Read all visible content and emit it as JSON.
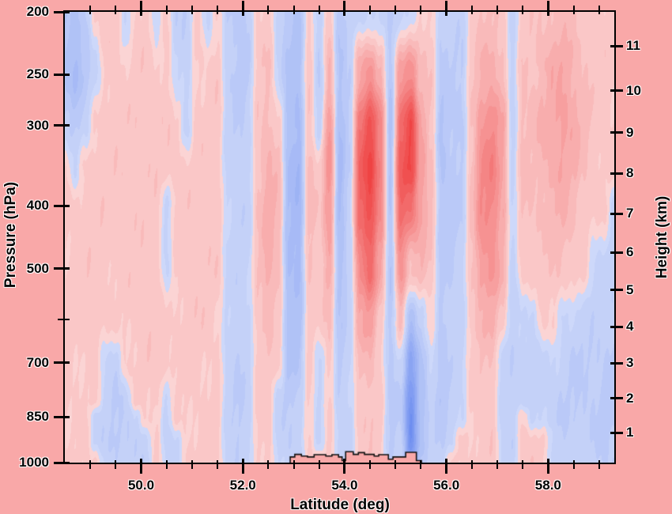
{
  "figure": {
    "background_color": "#f9a8a8",
    "frame_color": "#000000",
    "plot_type_note": "latitude-pressure cross-section of filled contour anomalies; red = positive, blue = negative; no title or colorbar shown"
  },
  "axes": {
    "x": {
      "label": "Latitude (deg)",
      "range": [
        48.5,
        59.3
      ],
      "major_ticks": [
        50,
        52,
        54,
        56,
        58
      ],
      "major_tick_labels": [
        "50.0",
        "52.0",
        "54.0",
        "56.0",
        "58.0"
      ],
      "minor_tick_step": 0.5
    },
    "y_left": {
      "label": "Pressure (hPa)",
      "scale": "log",
      "range": [
        200,
        1000
      ],
      "labeled_ticks": [
        200,
        250,
        300,
        400,
        500,
        700,
        850,
        1000
      ],
      "tick_labels": [
        "200",
        "250",
        "300",
        "400",
        "500",
        "700",
        "850",
        "1000"
      ],
      "unlabeled_ticks": [
        600
      ]
    },
    "y_right": {
      "label": "Height (km)",
      "ticks": [
        1,
        2,
        3,
        4,
        5,
        6,
        7,
        8,
        9,
        10,
        11
      ],
      "tick_labels": [
        "1",
        "2",
        "3",
        "4",
        "5",
        "6",
        "7",
        "8",
        "9",
        "10",
        "11"
      ],
      "tick_pressures_hpa": [
        899,
        795,
        701,
        616,
        540,
        472,
        411,
        356,
        308,
        265,
        226
      ]
    }
  },
  "chart_data": {
    "type": "heatmap",
    "x_name": "latitude_deg",
    "y_name": "pressure_hpa",
    "description": "Filled-contour anomaly field (arbitrary units, approx -3..+3). values[i][j] is the anomaly at lats[i] and levels_hpa[j], top (200 hPa) to bottom (1000 hPa). Dominant structure: fine vertical red/blue stripes; strongest reds near lat 54.3-54.7 and 55.1-55.3 at 250-450 hPa; deep blue band near lat 55.3-55.4 descending to the surface; moderate red band near 56.7-57.1 aloft; pale blue lower-troposphere patches at far left and far right.",
    "lats": [
      48.5,
      48.7,
      48.9,
      49.1,
      49.3,
      49.5,
      49.7,
      49.9,
      50.1,
      50.3,
      50.5,
      50.7,
      50.9,
      51.1,
      51.3,
      51.5,
      51.7,
      51.9,
      52.1,
      52.3,
      52.5,
      52.7,
      52.9,
      53.1,
      53.3,
      53.5,
      53.7,
      53.9,
      54.1,
      54.3,
      54.5,
      54.7,
      54.9,
      55.1,
      55.3,
      55.5,
      55.7,
      55.9,
      56.1,
      56.3,
      56.5,
      56.7,
      56.9,
      57.1,
      57.3,
      57.5,
      57.7,
      57.9,
      58.1,
      58.3,
      58.5,
      58.7,
      58.9,
      59.1,
      59.3
    ],
    "levels_hpa": [
      200,
      250,
      300,
      350,
      400,
      500,
      600,
      700,
      800,
      850,
      925,
      1000
    ],
    "values": [
      [
        -0.8,
        -0.8,
        -0.4,
        0.3,
        0.3,
        0.3,
        0.3,
        0.3,
        0.3,
        0.3,
        0.3,
        0.3
      ],
      [
        -0.9,
        -1.0,
        -0.6,
        -0.3,
        0.3,
        0.4,
        0.3,
        0.3,
        0.3,
        0.3,
        0.3,
        0.3
      ],
      [
        -0.5,
        -0.7,
        -0.4,
        0.3,
        0.4,
        0.4,
        0.4,
        0.3,
        0.3,
        0.3,
        0.3,
        0.3
      ],
      [
        0.3,
        -0.4,
        0.3,
        0.4,
        0.4,
        0.4,
        0.4,
        0.3,
        0.3,
        -0.3,
        -0.3,
        0.3
      ],
      [
        0.4,
        0.3,
        0.4,
        0.4,
        0.4,
        0.4,
        0.3,
        -0.3,
        -0.4,
        -0.4,
        -0.4,
        -0.3
      ],
      [
        0.4,
        0.4,
        0.4,
        0.4,
        0.4,
        0.3,
        0.3,
        -0.4,
        -0.5,
        -0.5,
        -0.6,
        -0.5
      ],
      [
        -0.3,
        0.3,
        0.4,
        0.4,
        0.4,
        0.4,
        0.3,
        0.3,
        -0.4,
        -0.5,
        -0.5,
        -0.4
      ],
      [
        0.3,
        0.4,
        0.4,
        0.4,
        0.4,
        0.4,
        0.4,
        0.3,
        0.3,
        -0.3,
        -0.4,
        -0.4
      ],
      [
        0.4,
        0.4,
        0.4,
        0.4,
        0.4,
        0.4,
        0.4,
        0.4,
        0.3,
        0.3,
        -0.3,
        -0.4
      ],
      [
        -0.3,
        0.3,
        0.4,
        0.4,
        0.4,
        0.4,
        0.4,
        0.4,
        0.4,
        0.3,
        0.3,
        0.3
      ],
      [
        0.3,
        0.4,
        0.4,
        0.4,
        -0.3,
        -0.3,
        0.3,
        0.4,
        -0.3,
        -0.4,
        -0.4,
        -0.3
      ],
      [
        -0.4,
        -0.3,
        0.3,
        0.4,
        0.4,
        0.3,
        0.3,
        0.3,
        0.3,
        0.3,
        -0.3,
        -0.3
      ],
      [
        -0.5,
        -0.4,
        -0.3,
        0.3,
        0.4,
        0.4,
        0.4,
        0.3,
        0.3,
        0.3,
        0.3,
        0.3
      ],
      [
        0.3,
        0.3,
        0.4,
        0.4,
        0.4,
        0.4,
        0.4,
        0.4,
        0.3,
        0.3,
        0.3,
        0.3
      ],
      [
        -0.3,
        0.3,
        0.3,
        0.4,
        0.4,
        0.4,
        0.4,
        0.3,
        0.3,
        0.3,
        0.3,
        0.3
      ],
      [
        0.3,
        0.4,
        0.4,
        0.4,
        0.4,
        0.4,
        0.3,
        0.3,
        0.3,
        0.3,
        0.3,
        0.3
      ],
      [
        -0.5,
        -0.4,
        -0.4,
        -0.3,
        -0.3,
        -0.3,
        -0.3,
        -0.4,
        -0.4,
        -0.4,
        -0.3,
        -0.3
      ],
      [
        -0.6,
        -0.6,
        -0.5,
        -0.5,
        -0.4,
        -0.4,
        -0.4,
        -0.5,
        -0.5,
        -0.5,
        -0.5,
        -0.5
      ],
      [
        -0.5,
        -0.5,
        -0.4,
        -0.4,
        -0.4,
        -0.3,
        -0.3,
        -0.4,
        -0.4,
        -0.4,
        -0.4,
        -0.4
      ],
      [
        0.3,
        0.4,
        0.4,
        0.5,
        0.5,
        0.5,
        0.4,
        0.4,
        0.3,
        0.3,
        0.3,
        0.3
      ],
      [
        0.4,
        0.5,
        0.6,
        0.8,
        0.9,
        0.9,
        0.6,
        0.4,
        0.4,
        0.4,
        0.4,
        0.4
      ],
      [
        -0.4,
        -0.3,
        0.4,
        0.6,
        0.7,
        0.6,
        0.4,
        0.3,
        -0.3,
        -0.4,
        -0.4,
        -0.3
      ],
      [
        -0.7,
        -0.8,
        -0.9,
        -1.0,
        -1.0,
        -1.0,
        -0.9,
        -0.8,
        -0.6,
        -0.5,
        -0.5,
        -0.4
      ],
      [
        -0.8,
        -0.9,
        -1.1,
        -1.2,
        -1.2,
        -1.1,
        -0.9,
        -0.7,
        -0.5,
        -0.5,
        -0.4,
        -0.4
      ],
      [
        0.3,
        0.4,
        0.5,
        0.6,
        0.6,
        0.5,
        0.4,
        0.3,
        0.3,
        0.3,
        0.3,
        0.3
      ],
      [
        -0.5,
        -0.5,
        -0.4,
        0.3,
        0.4,
        0.4,
        0.3,
        -0.3,
        -0.3,
        -0.3,
        -0.3,
        0.3
      ],
      [
        0.4,
        0.8,
        1.2,
        1.4,
        1.3,
        0.9,
        0.5,
        0.4,
        0.3,
        0.3,
        0.3,
        0.3
      ],
      [
        -0.6,
        -0.8,
        -1.0,
        -1.1,
        -1.0,
        -0.9,
        -0.7,
        -0.6,
        -0.5,
        -0.4,
        -0.4,
        -0.4
      ],
      [
        -0.4,
        -0.5,
        -0.5,
        -0.4,
        -0.4,
        -0.4,
        -0.4,
        -0.3,
        -0.3,
        -0.3,
        -0.3,
        -0.3
      ],
      [
        -0.4,
        1.0,
        2.0,
        2.3,
        2.2,
        1.6,
        0.9,
        0.6,
        0.4,
        0.4,
        0.4,
        0.4
      ],
      [
        -0.3,
        1.4,
        2.6,
        2.8,
        2.7,
        2.1,
        1.2,
        0.7,
        0.5,
        0.5,
        0.4,
        0.4
      ],
      [
        -0.3,
        0.8,
        1.6,
        1.8,
        1.6,
        1.0,
        0.4,
        0.3,
        0.3,
        0.3,
        0.3,
        0.3
      ],
      [
        -0.5,
        -0.7,
        -0.9,
        -0.8,
        -0.8,
        -0.7,
        -0.6,
        -0.6,
        -0.6,
        -0.6,
        -0.5,
        -0.4
      ],
      [
        -0.4,
        1.2,
        2.2,
        2.4,
        2.2,
        1.4,
        0.6,
        -0.3,
        -0.5,
        -0.5,
        -0.4,
        -0.4
      ],
      [
        -0.3,
        1.6,
        2.7,
        2.8,
        2.0,
        0.5,
        -1.0,
        -1.8,
        -2.3,
        -2.5,
        -2.5,
        -2.0
      ],
      [
        0.3,
        0.6,
        1.0,
        1.2,
        1.1,
        0.7,
        -0.4,
        -0.8,
        -1.0,
        -1.0,
        -0.9,
        -0.7
      ],
      [
        0.3,
        0.4,
        0.5,
        0.6,
        0.6,
        0.4,
        0.3,
        -0.3,
        -0.4,
        -0.4,
        -0.4,
        -0.3
      ],
      [
        -0.5,
        -0.6,
        -0.8,
        -0.8,
        -0.7,
        -0.6,
        -0.6,
        -0.7,
        -0.7,
        -0.6,
        -0.5,
        -0.4
      ],
      [
        -0.4,
        -0.5,
        -0.6,
        -0.6,
        -0.6,
        -0.5,
        -0.4,
        -0.4,
        -0.4,
        -0.4,
        -0.3,
        0.3
      ],
      [
        -0.4,
        -0.5,
        -0.6,
        -0.5,
        -0.5,
        -0.4,
        -0.3,
        -0.3,
        -0.3,
        -0.3,
        0.3,
        0.3
      ],
      [
        0.3,
        0.4,
        0.5,
        0.6,
        0.6,
        0.5,
        0.4,
        0.3,
        0.3,
        0.3,
        0.3,
        0.3
      ],
      [
        0.5,
        0.8,
        1.3,
        1.5,
        1.5,
        1.2,
        0.7,
        0.5,
        0.4,
        0.4,
        0.4,
        0.4
      ],
      [
        0.5,
        0.9,
        1.5,
        1.7,
        1.6,
        1.3,
        0.8,
        0.5,
        0.4,
        0.4,
        0.4,
        0.4
      ],
      [
        0.4,
        0.6,
        1.0,
        1.1,
        1.0,
        0.8,
        0.4,
        -0.3,
        -0.4,
        -0.4,
        -0.3,
        -0.3
      ],
      [
        -0.4,
        -0.4,
        -0.4,
        -0.3,
        -0.3,
        -0.4,
        -0.4,
        -0.5,
        -0.5,
        -0.4,
        -0.4,
        -0.3
      ],
      [
        0.4,
        0.5,
        0.6,
        0.6,
        0.5,
        0.4,
        -0.3,
        -0.4,
        -0.3,
        0.3,
        0.4,
        0.4
      ],
      [
        0.4,
        0.5,
        0.6,
        0.5,
        0.5,
        0.4,
        -0.3,
        -0.4,
        -0.4,
        -0.3,
        0.3,
        0.4
      ],
      [
        0.5,
        0.7,
        0.8,
        0.7,
        0.6,
        0.4,
        0.3,
        -0.3,
        -0.4,
        -0.3,
        0.3,
        0.3
      ],
      [
        0.6,
        0.9,
        1.0,
        0.9,
        0.7,
        0.5,
        0.3,
        -0.3,
        -0.4,
        -0.4,
        -0.3,
        -0.3
      ],
      [
        0.6,
        1.0,
        1.1,
        1.0,
        0.8,
        0.5,
        -0.3,
        -0.4,
        -0.5,
        -0.5,
        -0.4,
        -0.4
      ],
      [
        0.5,
        0.8,
        0.9,
        0.8,
        0.6,
        0.4,
        -0.3,
        -0.5,
        -0.5,
        -0.5,
        -0.4,
        -0.4
      ],
      [
        0.4,
        0.5,
        0.6,
        0.5,
        0.4,
        0.3,
        -0.4,
        -0.5,
        -0.5,
        -0.5,
        -0.4,
        -0.4
      ],
      [
        0.4,
        0.4,
        0.4,
        0.4,
        0.3,
        -0.3,
        -0.4,
        -0.5,
        -0.5,
        -0.5,
        -0.5,
        -0.4
      ],
      [
        0.3,
        0.4,
        0.4,
        0.3,
        0.3,
        -0.3,
        -0.4,
        -0.5,
        -0.6,
        -0.6,
        -0.5,
        -0.5
      ],
      [
        0.3,
        0.3,
        0.3,
        0.3,
        -0.3,
        -0.4,
        -0.5,
        -0.6,
        -0.6,
        -0.6,
        -0.5,
        -0.5
      ]
    ],
    "colormap": {
      "pos_low": "#fcdbdb",
      "pos_high": "#ee3c3c",
      "neg_low": "#d2dcfa",
      "neg_high": "#5f82ee",
      "quantize_step": 0.25,
      "vmax": 3
    },
    "terrain_outline": {
      "fill": "#f9a8a8",
      "stroke": "#111111",
      "steps": [
        [
          52.93,
          53.02,
          980
        ],
        [
          53.02,
          53.15,
          971
        ],
        [
          53.15,
          53.27,
          977
        ],
        [
          53.27,
          53.4,
          980
        ],
        [
          53.4,
          53.63,
          972
        ],
        [
          53.63,
          53.75,
          977
        ],
        [
          53.75,
          53.88,
          972
        ],
        [
          53.88,
          53.95,
          980
        ],
        [
          53.95,
          54.02,
          993
        ],
        [
          54.02,
          54.17,
          962
        ],
        [
          54.17,
          54.27,
          971
        ],
        [
          54.27,
          54.39,
          965
        ],
        [
          54.39,
          54.58,
          971
        ],
        [
          54.58,
          54.67,
          977
        ],
        [
          54.67,
          54.86,
          972
        ],
        [
          54.86,
          54.95,
          988
        ],
        [
          54.95,
          55.2,
          980
        ],
        [
          55.2,
          55.41,
          964
        ],
        [
          55.41,
          55.51,
          993
        ]
      ]
    }
  }
}
